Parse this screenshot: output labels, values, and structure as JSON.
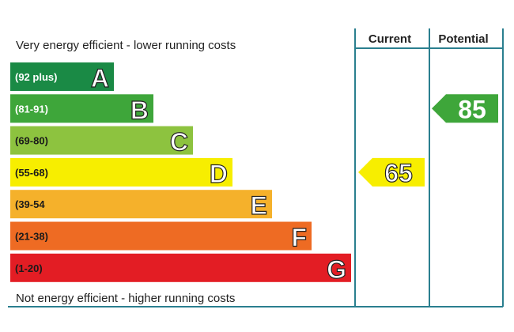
{
  "chart_data": {
    "type": "bar",
    "top_caption": "Very energy efficient - lower running costs",
    "bottom_caption": "Not energy efficient - higher running costs",
    "columns": {
      "current": "Current",
      "potential": "Potential"
    },
    "bands": [
      {
        "range": "(92 plus)",
        "letter": "A",
        "color": "#1a8a45"
      },
      {
        "range": "(81-91)",
        "letter": "B",
        "color": "#3ea63a"
      },
      {
        "range": "(69-80)",
        "letter": "C",
        "color": "#8dc33f"
      },
      {
        "range": "(55-68)",
        "letter": "D",
        "color": "#f7ee00"
      },
      {
        "range": "(39-54",
        "letter": "E",
        "color": "#f5b12b"
      },
      {
        "range": "(21-38)",
        "letter": "F",
        "color": "#ee6b23"
      },
      {
        "range": "(1-20)",
        "letter": "G",
        "color": "#e31d24"
      }
    ],
    "current": {
      "value": 65,
      "band": "D"
    },
    "potential": {
      "value": 85,
      "band": "B"
    },
    "frame_color": "#2a7f8f"
  }
}
